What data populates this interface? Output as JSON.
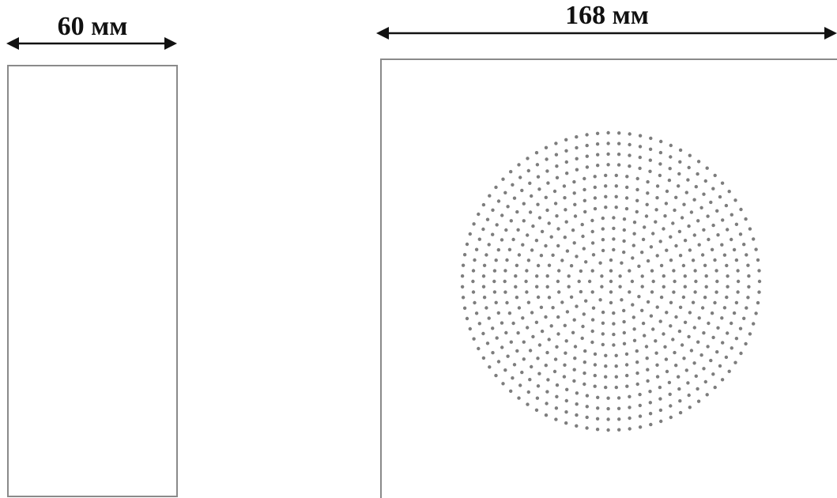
{
  "left_panel": {
    "width_label": "60 мм"
  },
  "right_panel": {
    "width_label": "168 мм"
  },
  "colors": {
    "outline": "#8a8a8a",
    "dimension": "#111111",
    "hole": "#7d7d7d",
    "background": "#ffffff"
  }
}
